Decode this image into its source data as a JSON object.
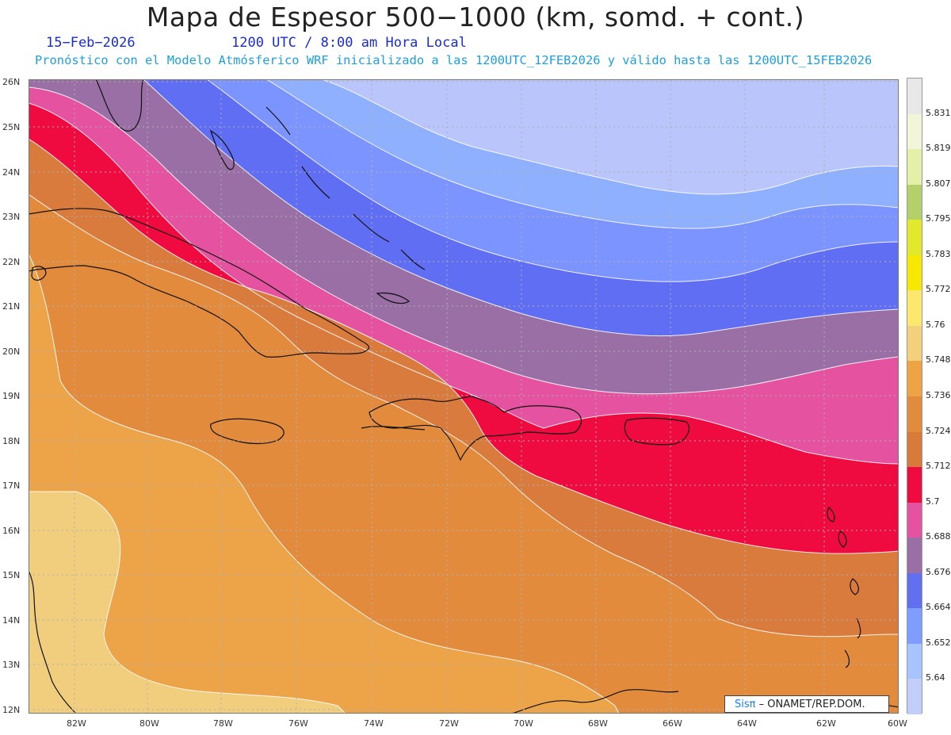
{
  "header": {
    "title": "Mapa de Espesor 500−1000 (km, somd. + cont.)",
    "date": "15−Feb−2026",
    "time": "1200 UTC / 8:00 am Hora Local",
    "subtitle": "Pronóstico con el Modelo Atmósferico WRF inicializado a las 1200UTC_12FEB2026 y válido hasta las  1200UTC_15FEB2026"
  },
  "axes": {
    "lat_labels": [
      "26N",
      "25N",
      "24N",
      "23N",
      "22N",
      "21N",
      "20N",
      "19N",
      "18N",
      "17N",
      "16N",
      "15N",
      "14N",
      "13N",
      "12N"
    ],
    "lon_labels": [
      "82W",
      "80W",
      "78W",
      "76W",
      "74W",
      "72W",
      "70W",
      "68W",
      "66W",
      "64W",
      "62W",
      "60W"
    ]
  },
  "colorbar": {
    "labels": [
      "5.831",
      "5.819",
      "5.807",
      "5.795",
      "5.783",
      "5.772",
      "5.76",
      "5.748",
      "5.736",
      "5.724",
      "5.712",
      "5.7",
      "5.688",
      "5.676",
      "5.664",
      "5.652",
      "5.64"
    ],
    "colors_top_to_bottom": [
      "#e8e8e8",
      "#f2f5d8",
      "#e4f0a8",
      "#b3d06a",
      "#e3e82a",
      "#f6e800",
      "#fbe86c",
      "#f2d07c",
      "#eea445",
      "#e38b3c",
      "#d87a3a",
      "#ef0a3f",
      "#e552a0",
      "#9a6fa6",
      "#6070f0",
      "#7f9cff",
      "#a8c4ff",
      "#c3cdf9"
    ],
    "shading_colors": {
      "lightest_blue": "#b9c5fb",
      "light_blue": "#8fb0ff",
      "mid_blue": "#7c94ff",
      "blue": "#5f6ef2",
      "purple": "#9a6fa6",
      "pink": "#e552a0",
      "red": "#ef0a3f",
      "dark_orange": "#d97b3c",
      "orange": "#e38b3c",
      "light_orange": "#eda449",
      "pale": "#f1cd7e"
    }
  },
  "credit": {
    "brand": "Sisπ",
    "org": "– ONAMET/REP.DOM."
  }
}
